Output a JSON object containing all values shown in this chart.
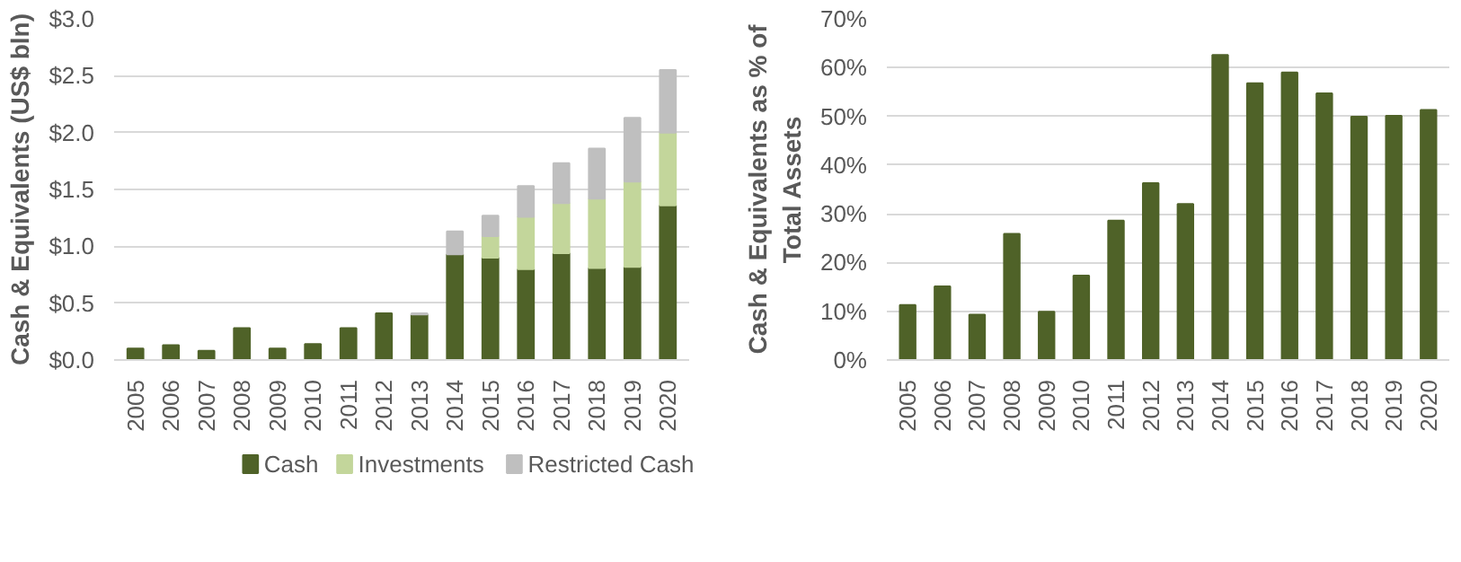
{
  "chart_data": [
    {
      "type": "bar",
      "stacked": true,
      "ylabel": "Cash & Equivalents (US$ bln)",
      "categories": [
        "2005",
        "2006",
        "2007",
        "2008",
        "2009",
        "2010",
        "2011",
        "2012",
        "2013",
        "2014",
        "2015",
        "2016",
        "2017",
        "2018",
        "2019",
        "2020"
      ],
      "series": [
        {
          "name": "Cash",
          "color": "#4f6228",
          "values": [
            0.1,
            0.13,
            0.08,
            0.28,
            0.1,
            0.14,
            0.28,
            0.41,
            0.4,
            0.93,
            0.9,
            0.8,
            0.94,
            0.81,
            0.82,
            1.36
          ]
        },
        {
          "name": "Investments",
          "color": "#c3d69b",
          "values": [
            0,
            0,
            0,
            0,
            0,
            0,
            0,
            0,
            0,
            0,
            0.19,
            0.46,
            0.44,
            0.61,
            0.75,
            0.64
          ]
        },
        {
          "name": "Restricted Cash",
          "color": "#bfbfbf",
          "values": [
            0,
            0,
            0,
            0,
            0,
            0,
            0,
            0,
            0.01,
            0.2,
            0.18,
            0.27,
            0.35,
            0.44,
            0.56,
            0.55
          ]
        }
      ],
      "ylim": [
        0,
        3.0
      ],
      "yticks": [
        {
          "value": 0,
          "label": "$0.0"
        },
        {
          "value": 0.5,
          "label": "$0.5"
        },
        {
          "value": 1.0,
          "label": "$1.0"
        },
        {
          "value": 1.5,
          "label": "$1.5"
        },
        {
          "value": 2.0,
          "label": "$2.0"
        },
        {
          "value": 2.5,
          "label": "$2.5"
        },
        {
          "value": 3.0,
          "label": "$3.0"
        }
      ],
      "grid": "y",
      "legend": "bottom"
    },
    {
      "type": "bar",
      "ylabel": "Cash & Equivalents as % of\nTotal Assets",
      "categories": [
        "2005",
        "2006",
        "2007",
        "2008",
        "2009",
        "2010",
        "2011",
        "2012",
        "2013",
        "2014",
        "2015",
        "2016",
        "2017",
        "2018",
        "2019",
        "2020"
      ],
      "series": [
        {
          "color": "#4f6228",
          "values": [
            11.3,
            15.1,
            9.3,
            25.9,
            9.9,
            17.3,
            28.6,
            36.3,
            32.0,
            62.6,
            56.8,
            59.0,
            54.7,
            49.9,
            50.1,
            51.3
          ]
        }
      ],
      "ylim": [
        0,
        70
      ],
      "yticks": [
        {
          "value": 0,
          "label": "0%"
        },
        {
          "value": 10,
          "label": "10%"
        },
        {
          "value": 20,
          "label": "20%"
        },
        {
          "value": 30,
          "label": "30%"
        },
        {
          "value": 40,
          "label": "40%"
        },
        {
          "value": 50,
          "label": "50%"
        },
        {
          "value": 60,
          "label": "60%"
        },
        {
          "value": 70,
          "label": "70%"
        }
      ],
      "grid": "y"
    }
  ]
}
